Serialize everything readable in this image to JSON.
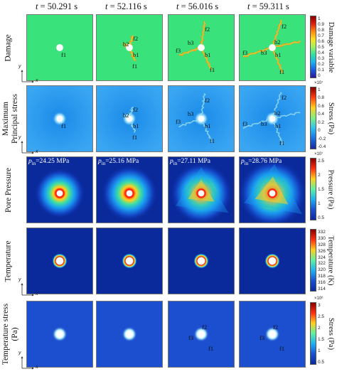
{
  "columns": [
    {
      "label": "t = 50.291 s"
    },
    {
      "label": "t = 52.116 s"
    },
    {
      "label": "t = 56.016 s"
    },
    {
      "label": "t = 59.311 s"
    }
  ],
  "rows": [
    {
      "label_lines": [
        "Damage"
      ],
      "colorbar_title": "Damage variable",
      "ticks": [
        "1",
        "0.9",
        "0.8",
        "0.7",
        "0.6",
        "0.5",
        "0.4",
        "0.3",
        "0.2",
        "0.1",
        "0"
      ],
      "exponent": ""
    },
    {
      "label_lines": [
        "Maximum",
        "Principal stress"
      ],
      "colorbar_title": "Stress (Pa)",
      "ticks": [
        "1",
        "0.8",
        "0.6",
        "0.4",
        "0.2",
        "0",
        "-0.2",
        "-0.4"
      ],
      "exponent": "×10⁷"
    },
    {
      "label_lines": [
        "Pore Pressure"
      ],
      "colorbar_title": "Pressure (Pa)",
      "ticks": [
        "2.5",
        "2",
        "1.5",
        "1",
        "0.5"
      ],
      "exponent": "×10⁷"
    },
    {
      "label_lines": [
        "Temperature"
      ],
      "colorbar_title": "Temperature (K)",
      "ticks": [
        "332",
        "330",
        "328",
        "326",
        "324",
        "322",
        "320",
        "318",
        "316",
        "314"
      ],
      "exponent": ""
    },
    {
      "label_lines": [
        "Temperature stress",
        "(Pa)"
      ],
      "colorbar_title": "Stress (Pa)",
      "ticks": [
        "3",
        "2.5",
        "2",
        "1.5",
        "1",
        "0.5"
      ],
      "exponent": "×10⁶"
    }
  ],
  "pore_pressure_labels": [
    "p_in=24.25 MPa",
    "p_in=25.16 MPa",
    "p_in=27.11 MPa",
    "p_in=28.76 MPa"
  ],
  "pore_pressure_parts": [
    {
      "prefix": "p",
      "sub": "in",
      "value": "=24.25 MPa"
    },
    {
      "prefix": "p",
      "sub": "in",
      "value": "=25.16 MPa"
    },
    {
      "prefix": "p",
      "sub": "in",
      "value": "=27.11 MPa"
    },
    {
      "prefix": "p",
      "sub": "in",
      "value": "=28.76 MPa"
    }
  ],
  "fracture_labels": {
    "f1": "f1",
    "f2": "f2",
    "f3": "f3",
    "b1": "b1",
    "b2": "b2",
    "b3": "b3"
  },
  "axis_labels": {
    "x": "x",
    "y": "y"
  },
  "colors": {
    "damage_bg": "#39e27a",
    "stress_bg": "#2f9bf0",
    "pore_bg": "#0a2a9c",
    "temp_bg": "#0a2a9c",
    "tstress_bg": "#1b4fd0",
    "crack_damage": "#e8a020",
    "crack_stress": "#8fd8f0"
  }
}
